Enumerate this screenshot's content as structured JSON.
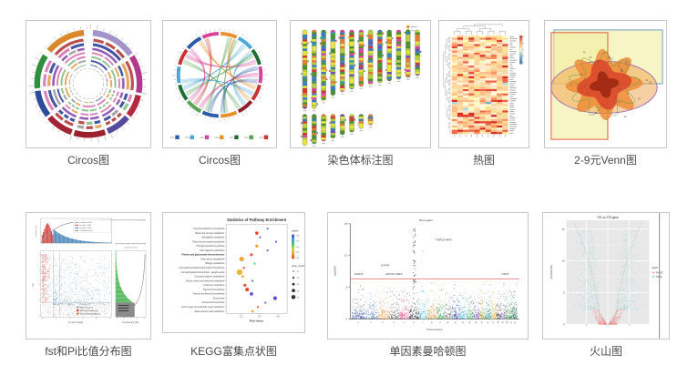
{
  "page": {
    "background": "#ffffff"
  },
  "cards": [
    {
      "id": "circos-rings",
      "label": "Circos图"
    },
    {
      "id": "circos-chord",
      "label": "Circos图"
    },
    {
      "id": "chromosome",
      "label": "染色体标注图"
    },
    {
      "id": "heatmap",
      "label": "热图"
    },
    {
      "id": "venn",
      "label": "2-9元Venn图"
    },
    {
      "id": "fstpi",
      "label": "fst和Pi比值分布图"
    },
    {
      "id": "kegg",
      "label": "KEGG富集点状图"
    },
    {
      "id": "manhattan",
      "label": "单因素曼哈顿图"
    },
    {
      "id": "volcano",
      "label": "火山图"
    }
  ],
  "chart_data": [
    {
      "id": "circos-rings",
      "type": "circos",
      "description": "multi-ring circos plot with tick marks",
      "outer_segments": [
        {
          "color": "#d9882b",
          "a0": 310,
          "a1": 355
        },
        {
          "color": "#a393c9",
          "a0": 5,
          "a1": 55
        },
        {
          "color": "#b23a8c",
          "a0": 58,
          "a1": 100
        },
        {
          "color": "#b3293f",
          "a0": 103,
          "a1": 128
        },
        {
          "color": "#574a9e",
          "a0": 131,
          "a1": 158
        },
        {
          "color": "#9c1f2e",
          "a0": 161,
          "a1": 196
        },
        {
          "color": "#a42436",
          "a0": 199,
          "a1": 229
        },
        {
          "color": "#2c4b9b",
          "a0": 232,
          "a1": 262
        },
        {
          "color": "#2f8f3e",
          "a0": 265,
          "a1": 303
        }
      ],
      "ring_colors": [
        "#b23b3b",
        "#32449a",
        "#8a4fae",
        "#d677b3",
        "#83bd83",
        "#e0a050",
        "#9a9a9a"
      ]
    },
    {
      "id": "circos-chord",
      "type": "chord",
      "description": "circos chord/link diagram with color legend",
      "segment_colors": [
        "#e8902c",
        "#4aa8d8",
        "#1e6b35",
        "#d8439a",
        "#c83232",
        "#8f1f2e",
        "#e8902c",
        "#2a5ba8",
        "#53a553",
        "#1e6b35",
        "#4aa8d8",
        "#c83232",
        "#2a5ba8",
        "#d8439a"
      ],
      "chords": [
        {
          "a": 15,
          "b": 200,
          "color": "#53a553"
        },
        {
          "a": 25,
          "b": 170,
          "color": "#53a553"
        },
        {
          "a": 40,
          "b": 250,
          "color": "#4aa8d8"
        },
        {
          "a": 55,
          "b": 140,
          "color": "#4aa8d8"
        },
        {
          "a": 70,
          "b": 300,
          "color": "#d8439a"
        },
        {
          "a": 90,
          "b": 210,
          "color": "#d8439a"
        },
        {
          "a": 110,
          "b": 330,
          "color": "#e8902c"
        },
        {
          "a": 130,
          "b": 20,
          "color": "#e8902c"
        },
        {
          "a": 150,
          "b": 290,
          "color": "#53a553"
        },
        {
          "a": 175,
          "b": 80,
          "color": "#2a5ba8"
        },
        {
          "a": 195,
          "b": 100,
          "color": "#2a5ba8"
        },
        {
          "a": 220,
          "b": 340,
          "color": "#c83232"
        },
        {
          "a": 240,
          "b": 60,
          "color": "#53a553"
        },
        {
          "a": 260,
          "b": 120,
          "color": "#4aa8d8"
        },
        {
          "a": 310,
          "b": 230,
          "color": "#d8439a"
        }
      ],
      "legend_colors": [
        "#2a5ba8",
        "#4aa8d8",
        "#d8439a",
        "#e8902c",
        "#1e6b35",
        "#53a553",
        "#c83232"
      ]
    },
    {
      "id": "chromosome",
      "type": "ideogram",
      "description": "two rows of annotated chromosome ideograms, heights decreasing",
      "row1_heights": [
        88,
        88,
        79,
        73,
        69,
        66,
        63,
        61,
        59,
        57,
        55,
        53,
        51
      ],
      "row2_heights": [
        35,
        33,
        30,
        27,
        23,
        20,
        16,
        12
      ],
      "band_colors": [
        "#4a8f2e",
        "#b5cc3a",
        "#e6e23e",
        "#3a7db5",
        "#e07b2c",
        "#cc3a2e",
        "#d842a0",
        "#6a4fae",
        "#2f9e8f"
      ],
      "legend_colors": [
        "#e8872c",
        "#4a8f2e"
      ]
    },
    {
      "id": "heatmap",
      "type": "heatmap",
      "description": "clustered heatmap with row/column dendrograms and color key",
      "cols": 10,
      "rows": 46,
      "palette": {
        "hot": [
          "#d7301f",
          "#e34a33",
          "#ef6548",
          "#fc8d59"
        ],
        "warm": [
          "#fdbb84",
          "#fdd49e",
          "#fee8c8",
          "#fee090"
        ],
        "pale": [
          "#fff7db",
          "#ffffbf"
        ],
        "cool": [
          "#abd9e9",
          "#74a9cf",
          "#4575b4"
        ]
      },
      "colorbar": [
        "#d7301f",
        "#fdae61",
        "#ffffbf",
        "#74add1",
        "#4575b4"
      ]
    },
    {
      "id": "venn",
      "type": "venn",
      "description": "2-9 set venn diagram built from rectangles, ellipse and petal shapes",
      "outline_colors": {
        "blue_rect": "#6f9fca",
        "red_rect": "#e05a3a",
        "purple_ellipse": "#9b6bb5",
        "green_outline": "#6a9c3a"
      },
      "fill_colors": {
        "pale_yellow": "#f2eda0",
        "mid_orange": "#f0a04a",
        "orange": "#ee8833",
        "red": "#d8442a",
        "dark_red": "#9e2812"
      }
    },
    {
      "id": "fstpi",
      "type": "fstpi",
      "description": "fst vs pi-ratio scatter with marginal histograms and cumulative curves",
      "xlabel": "pi ratio (log2)",
      "ylabel": "Fst",
      "right_xlabel": "Frequency (%)",
      "top_ylabel": "Frequency (%)",
      "cum_label": "Cumulative (%)",
      "top_legend": [
        {
          "label": "p value < 0.05",
          "color": "#999999"
        },
        {
          "label": "pi ratio < 0.05",
          "color": "#cc3333"
        },
        {
          "label": "pi ratio > 0.05",
          "color": "#3a7ab5"
        },
        {
          "label": "Cumulative (%)",
          "color": "#777777"
        }
      ],
      "main_legend": [
        {
          "label": "Whole genome",
          "color": "#9a9a9a"
        },
        {
          "label": "Selected Region(up)",
          "color": "#cc3333"
        },
        {
          "label": "Selected Region(down)",
          "color": "#d85c2a"
        }
      ],
      "point_colors": {
        "background": "#b0b0b0",
        "left_selected": "#cc3333",
        "cloud": "#3a7ab5",
        "right_hist": "#3fae49"
      }
    },
    {
      "id": "kegg",
      "type": "dotplot",
      "title": "Statistics of Pathway Enrichment",
      "xlabel": "Rich factor",
      "x_ticks": [
        "0.2",
        "0.4",
        "0.6"
      ],
      "bold_index": 6,
      "pathways": [
        "Terpenoid backbone biosynthesis",
        "Starch and sucrose metabolism",
        "Sphingolipid metabolism",
        "Plant hormone signal transduction",
        "Phenylpropanoid biosynthesis",
        "Phenylalanine metabolism",
        "Pentose and glucuronate interconversions",
        "Other glycan degradation",
        "Nitrogen metabolism",
        "Glycosylphosphatidylinositol-anchor biosynthesis",
        "Glycosphingolipid biosynthesis - ganglio series",
        "Glycosaminoglycan degradation",
        "Glycine, serine and threonine metabolism",
        "Galactose metabolism",
        "Flavonoid biosynthesis",
        "Flavone and flavonol biosynthesis",
        "Endocytosis",
        "Carotenoid biosynthesis",
        "Amino sugar and nucleotide sugar metabolism",
        "alpha-Linolenic acid metabolism"
      ],
      "points": [
        {
          "x": 0.72,
          "s": 1.0,
          "c": "#5a6fd8"
        },
        {
          "x": 0.52,
          "s": 1.6,
          "c": "#e83a20"
        },
        {
          "x": 0.58,
          "s": 1.0,
          "c": "#8a5fd0"
        },
        {
          "x": 0.88,
          "s": 1.0,
          "c": "#5a6fd8"
        },
        {
          "x": 0.52,
          "s": 1.5,
          "c": "#f0a030"
        },
        {
          "x": 0.72,
          "s": 1.0,
          "c": "#5a6fd8"
        },
        {
          "x": 0.42,
          "s": 1.3,
          "c": "#e83a20"
        },
        {
          "x": 0.24,
          "s": 2.2,
          "c": "#f0a030"
        },
        {
          "x": 0.48,
          "s": 1.0,
          "c": "#42c878"
        },
        {
          "x": 0.28,
          "s": 1.0,
          "c": "#e83a20"
        },
        {
          "x": 0.2,
          "s": 2.8,
          "c": "#f0b030"
        },
        {
          "x": 0.26,
          "s": 1.2,
          "c": "#f0a030"
        },
        {
          "x": 0.44,
          "s": 1.0,
          "c": "#5a6fd8"
        },
        {
          "x": 0.3,
          "s": 1.4,
          "c": "#e83a20"
        },
        {
          "x": 0.34,
          "s": 1.8,
          "c": "#e83a20"
        },
        {
          "x": 0.42,
          "s": 1.7,
          "c": "#5a4fd8"
        },
        {
          "x": 0.86,
          "s": 1.8,
          "c": "#4a3fd0"
        },
        {
          "x": 0.68,
          "s": 1.0,
          "c": "#5a6fd8"
        },
        {
          "x": 0.54,
          "s": 1.0,
          "c": "#e85a30"
        },
        {
          "x": 0.44,
          "s": 1.2,
          "c": "#f0a030"
        }
      ],
      "qvalue_legend": {
        "title": "qvalue",
        "labels": [
          "1.00",
          "0.75",
          "0.50",
          "0.25",
          "0.00"
        ],
        "gradient": [
          "#3a4fd0",
          "#3fa0d0",
          "#42c878",
          "#c8d83a",
          "#f0a030",
          "#e83a20"
        ]
      },
      "size_legend": {
        "title": "gene_number",
        "labels": [
          "10",
          "20",
          "30",
          "40",
          "50"
        ]
      }
    },
    {
      "id": "manhattan",
      "type": "manhattan",
      "ylabel": "-log10(P)",
      "xlabel": "Chromosome",
      "y_ticks": [
        0,
        5,
        10,
        15
      ],
      "ymax": 15,
      "significance_line": 6.3,
      "sig_color": "#e88080",
      "peak": {
        "chr": 6,
        "value": 14.2
      },
      "annotations": [
        {
          "text": "HLA region",
          "x": 0.4,
          "v": 15.4
        },
        {
          "text": "TNPO3-IRF5",
          "x": 0.5,
          "v": 12.3
        },
        {
          "text": "STAT4",
          "x": 0.17,
          "v": 8.3
        },
        {
          "text": "CD247",
          "x": 0.01,
          "v": 6.9
        },
        {
          "text": "EXOC2-IRF4",
          "x": 0.2,
          "v": 6.9
        },
        {
          "text": "CD47",
          "x": 0.9,
          "v": 6.9
        }
      ],
      "chromosomes": [
        "1",
        "2",
        "3",
        "4",
        "5",
        "6",
        "7",
        "8",
        "9",
        "10",
        "11",
        "12",
        "13",
        "14",
        "15",
        "16",
        "17",
        "18",
        "19",
        "20",
        "21",
        "22"
      ],
      "chr_colors": [
        "#283d9e",
        "#4a78c4",
        "#e8872c",
        "#5a5a5a",
        "#d6336f",
        "#141414",
        "#45b4e4",
        "#e8872c",
        "#2f9e4d",
        "#6a6a6a",
        "#1f3f9e",
        "#3fb0dc",
        "#2f9e4d",
        "#7a4fb0",
        "#9a9a2e",
        "#1f8f8f",
        "#d4a017",
        "#474747",
        "#8a5fc8",
        "#2f9e4d",
        "#1f6b3a",
        "#1e5f50"
      ]
    },
    {
      "id": "volcano",
      "type": "volcano",
      "title": "T01-vs-T02 gene",
      "ylabel": "-log10(FDR)",
      "y_ticks": [
        0,
        5,
        10,
        15
      ],
      "legend_title": "signif",
      "legend": [
        {
          "label": "FALSE",
          "color": "#f08080"
        },
        {
          "label": "TRUE",
          "color": "#74c8cc"
        }
      ],
      "panel_color": "#e8e8e8"
    }
  ]
}
